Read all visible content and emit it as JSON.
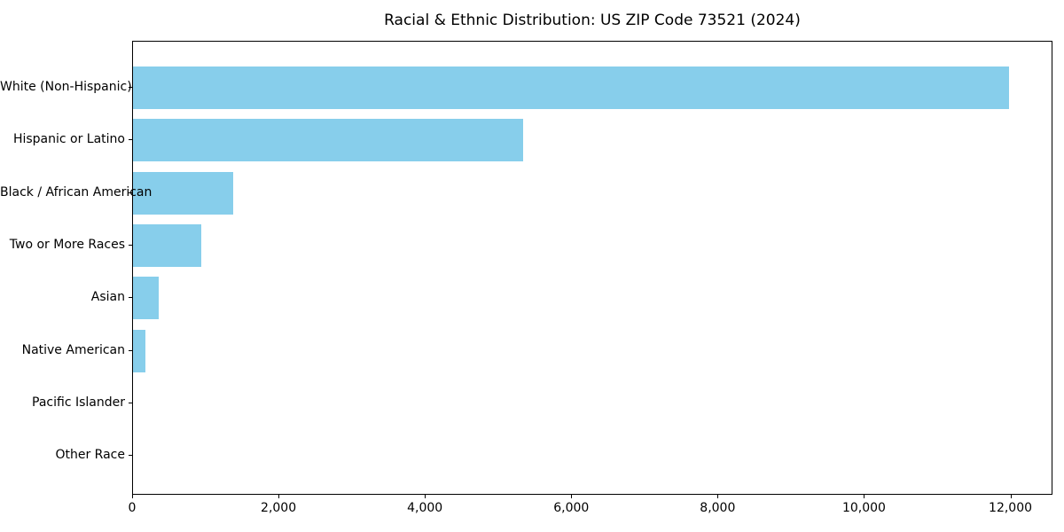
{
  "title": "Racial & Ethnic Distribution: US ZIP Code 73521 (2024)",
  "chart_data": {
    "type": "bar",
    "orientation": "horizontal",
    "title": "Racial & Ethnic Distribution: US ZIP Code 73521 (2024)",
    "categories": [
      "White (Non-Hispanic)",
      "Hispanic or Latino",
      "Black / African American",
      "Two or More Races",
      "Asian",
      "Native American",
      "Pacific Islander",
      "Other Race"
    ],
    "values": [
      11970,
      5330,
      1370,
      930,
      350,
      170,
      0,
      0
    ],
    "xlabel": "",
    "ylabel": "",
    "xlim": [
      0,
      12575
    ],
    "xticks": [
      0,
      2000,
      4000,
      6000,
      8000,
      10000,
      12000
    ],
    "xtick_labels": [
      "0",
      "2,000",
      "4,000",
      "6,000",
      "8,000",
      "10,000",
      "12,000"
    ],
    "bar_color": "#87CEEB",
    "axis_color": "#000000",
    "background_color": "#ffffff",
    "grid": false,
    "legend": null
  }
}
